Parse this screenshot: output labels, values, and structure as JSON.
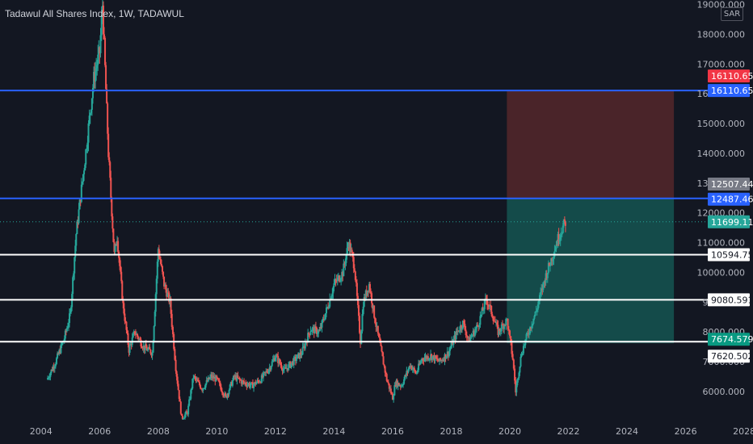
{
  "header": {
    "title": "Tadawul All Shares Index, 1W, TADAWUL"
  },
  "axis": {
    "currency": "SAR"
  },
  "colors": {
    "background": "#131722",
    "up": "#26a69a",
    "down": "#ef5350",
    "blue_line": "#2962ff",
    "white_line": "#ffffff",
    "profit_zone": "#144b4a",
    "loss_zone": "#4a2429",
    "axis_text": "#b2b5be"
  },
  "chart_data": {
    "type": "line",
    "title": "Tadawul All Shares Index, 1W, TADAWUL",
    "x_ticks": [
      "2004",
      "2006",
      "2008",
      "2010",
      "2012",
      "2014",
      "2016",
      "2018",
      "2020",
      "2022",
      "2024",
      "2026",
      "2028"
    ],
    "y_ticks": [
      "6000.000",
      "7000.000",
      "8000.000",
      "9000.000",
      "10000.000",
      "11000.000",
      "12000.000",
      "13000.000",
      "14000.000",
      "15000.000",
      "16000.000",
      "17000.000",
      "18000.000",
      "19000.000"
    ],
    "xlim": [
      2002.6,
      2028.3
    ],
    "ylim": [
      5050,
      19150
    ],
    "series": [
      {
        "x": [
          2004.2,
          2004.5,
          2004.8,
          2005.0,
          2005.2,
          2005.5,
          2005.8,
          2006.0,
          2006.1,
          2006.3,
          2006.5,
          2006.6,
          2006.8,
          2007.0,
          2007.2,
          2007.5,
          2007.8,
          2008.0,
          2008.2,
          2008.4,
          2008.6,
          2008.8,
          2009.0,
          2009.2,
          2009.5,
          2009.8,
          2010.0,
          2010.3,
          2010.6,
          2010.9,
          2011.2,
          2011.5,
          2011.8,
          2012.0,
          2012.3,
          2012.6,
          2012.9,
          2013.2,
          2013.5,
          2013.8,
          2014.0,
          2014.3,
          2014.5,
          2014.7,
          2014.9,
          2015.0,
          2015.2,
          2015.4,
          2015.6,
          2015.8,
          2016.0,
          2016.1,
          2016.3,
          2016.6,
          2016.8,
          2017.0,
          2017.3,
          2017.6,
          2017.9,
          2018.2,
          2018.4,
          2018.6,
          2018.9,
          2019.2,
          2019.4,
          2019.6,
          2019.9,
          2020.1,
          2020.2,
          2020.4,
          2020.6,
          2020.9,
          2021.2,
          2021.5,
          2021.7,
          2021.9
        ],
        "y": [
          6400,
          7000,
          7800,
          8600,
          11300,
          13800,
          16500,
          17400,
          19000,
          14000,
          10600,
          11200,
          8900,
          7400,
          8000,
          7500,
          7300,
          10800,
          9600,
          9000,
          6800,
          5100,
          5300,
          6500,
          6100,
          6500,
          6400,
          5800,
          6500,
          6300,
          6200,
          6400,
          6800,
          7200,
          6700,
          7000,
          7300,
          8100,
          8000,
          8900,
          9600,
          10000,
          11000,
          10200,
          7700,
          9000,
          9600,
          8400,
          7400,
          6400,
          5800,
          6300,
          6200,
          6900,
          6600,
          7100,
          7200,
          7000,
          7300,
          8000,
          8300,
          7700,
          8200,
          9100,
          8600,
          8000,
          8400,
          7100,
          6000,
          7300,
          7900,
          8700,
          9800,
          10700,
          11300,
          11699
        ]
      }
    ],
    "levels": [
      {
        "price": 16110.652,
        "label": "16110.652",
        "style": "blue"
      },
      {
        "price": 12487.467,
        "label": "12487.467",
        "style": "blue"
      },
      {
        "price": 10594.758,
        "label": "10594.758",
        "style": "white"
      },
      {
        "price": 9080.591,
        "label": "9080.591",
        "style": "white"
      },
      {
        "price": 7674.579,
        "label": "7674.579",
        "style": "white"
      }
    ],
    "position": {
      "x_start": 2019.9,
      "x_end": 2025.6,
      "entry": 12507.443,
      "target_loss_top": 16110.652,
      "stop_bottom": 7620.502
    },
    "price_badges": [
      {
        "price": 16110.652,
        "label": "16110.652",
        "bg": "#f23645",
        "fg": "#ffffff",
        "offset": -18
      },
      {
        "price": 16110.652,
        "label": "16110.652",
        "bg": "#2962ff",
        "fg": "#ffffff",
        "offset": 0
      },
      {
        "price": 12507.443,
        "label": "12507.443",
        "bg": "#787b86",
        "fg": "#ffffff",
        "offset": -17
      },
      {
        "price": 12487.467,
        "label": "12487.467",
        "bg": "#2962ff",
        "fg": "#ffffff",
        "offset": 1
      },
      {
        "price": 11699.11,
        "label": "11699.110",
        "bg": "#26a69a",
        "fg": "#ffffff",
        "offset": 0
      },
      {
        "price": 10594.758,
        "label": "10594.758",
        "bg": "#ffffff",
        "fg": "#131722",
        "offset": 0
      },
      {
        "price": 9080.591,
        "label": "9080.591",
        "bg": "#ffffff",
        "fg": "#131722",
        "offset": 0
      },
      {
        "price": 7674.579,
        "label": "7674.579",
        "bg": "#089981",
        "fg": "#ffffff",
        "offset": -3
      },
      {
        "price": 7620.502,
        "label": "7620.502",
        "bg": "#ffffff",
        "fg": "#131722",
        "offset": 16
      }
    ],
    "last_price": 11699.11
  }
}
